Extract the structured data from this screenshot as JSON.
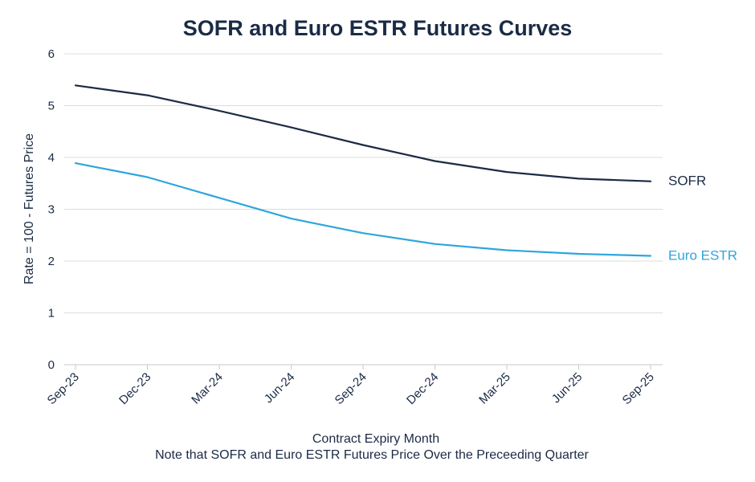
{
  "colors": {
    "sofr": "#1b2b45",
    "estr": "#2ea6dc",
    "text": "#1a2b45",
    "grid": "#dcdcdc"
  },
  "chart_data": {
    "type": "line",
    "title": "SOFR and Euro ESTR Futures Curves",
    "xlabel": "Contract Expiry Month",
    "note": "Note that SOFR and Euro ESTR Futures Price Over the Preceeding Quarter",
    "ylabel": "Rate = 100 - Futures Price",
    "ylim": [
      0,
      6
    ],
    "yticks": [
      "0",
      "1",
      "2",
      "3",
      "4",
      "5",
      "6"
    ],
    "categories": [
      "Sep-23",
      "Dec-23",
      "Mar-24",
      "Jun-24",
      "Sep-24",
      "Dec-24",
      "Mar-25",
      "Jun-25",
      "Sep-25"
    ],
    "grid": true,
    "legend": "inline-right",
    "series": [
      {
        "name": "SOFR",
        "color_key": "sofr",
        "values": [
          5.39,
          5.2,
          4.9,
          4.58,
          4.24,
          3.93,
          3.72,
          3.59,
          3.54
        ]
      },
      {
        "name": "Euro ESTR",
        "color_key": "estr",
        "values": [
          3.89,
          3.62,
          3.22,
          2.82,
          2.54,
          2.33,
          2.21,
          2.14,
          2.1
        ]
      }
    ]
  }
}
